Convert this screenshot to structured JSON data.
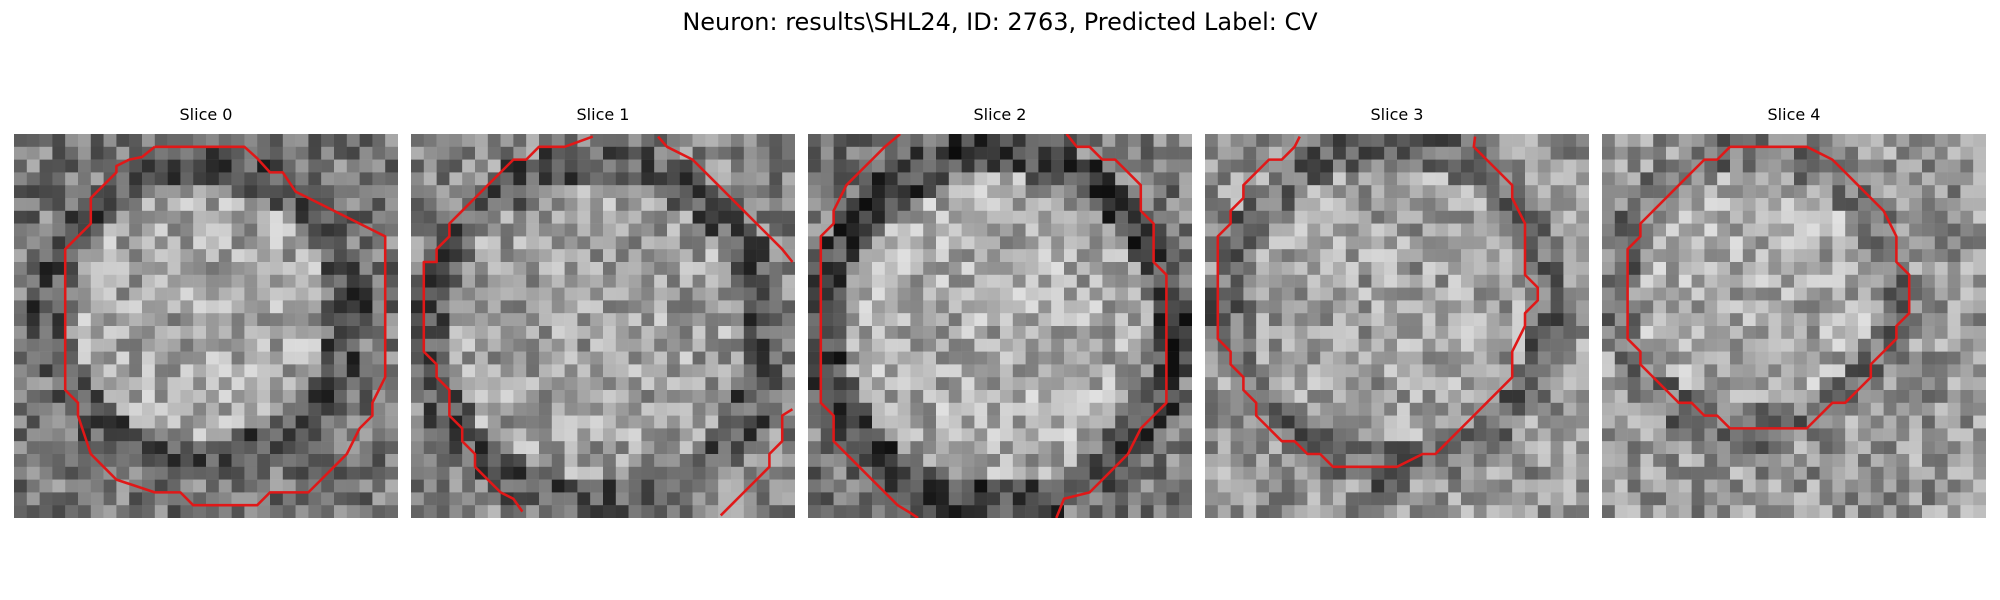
{
  "figure": {
    "title": "Neuron: results\\SHL24, ID: 2763, Predicted Label: CV"
  },
  "slices": [
    {
      "title": "Slice 0"
    },
    {
      "title": "Slice 1"
    },
    {
      "title": "Slice 2"
    },
    {
      "title": "Slice 3"
    },
    {
      "title": "Slice 4"
    }
  ],
  "colors": {
    "contour": "#e01818",
    "background": "#ffffff"
  }
}
